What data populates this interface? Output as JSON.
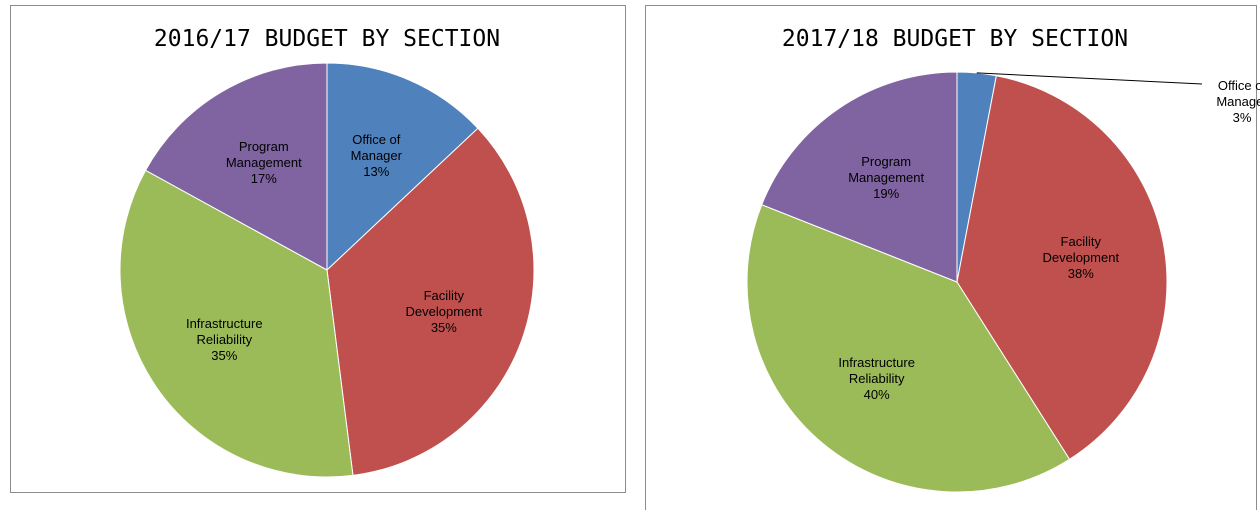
{
  "chart_data": [
    {
      "type": "pie",
      "title": "2016/17 BUDGET BY SECTION",
      "categories": [
        "Office of Manager",
        "Facility Development",
        "Infrastructure Reliability",
        "Program Management"
      ],
      "values": [
        13,
        35,
        35,
        17
      ],
      "value_labels": [
        "13%",
        "35%",
        "35%",
        "17%"
      ],
      "colors": [
        "#4f81bd",
        "#c0504d",
        "#9bbb59",
        "#8064a2"
      ]
    },
    {
      "type": "pie",
      "title": "2017/18 BUDGET BY SECTION",
      "categories": [
        "Office of Manager",
        "Facility Development",
        "Infrastructure Reliability",
        "Program Management"
      ],
      "values": [
        3,
        38,
        40,
        19
      ],
      "value_labels": [
        "3%",
        "38%",
        "40%",
        "19%"
      ],
      "colors": [
        "#4f81bd",
        "#c0504d",
        "#9bbb59",
        "#8064a2"
      ]
    }
  ]
}
